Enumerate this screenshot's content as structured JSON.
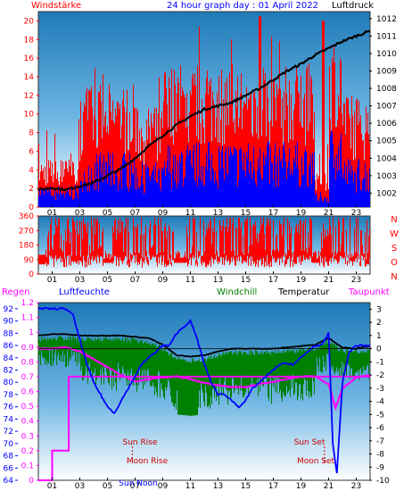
{
  "colors": {
    "wind": "#ff0000",
    "gust_blue": "#0000ff",
    "pressure": "#000000",
    "direction": "#ff0000",
    "rain": "#ff00ff",
    "humidity": "#0000ff",
    "windchill": "#008000",
    "temperature": "#000000",
    "dewpoint": "#ff00ff",
    "plot_top": "#1f7ab8",
    "plot_bottom": "#ffffff"
  },
  "header": {
    "left": "Windstärke",
    "center": "24 hour graph day : 01 April 2022",
    "right": "Luftdruck"
  },
  "compass": [
    "N",
    "W",
    "S",
    "O",
    "N"
  ],
  "lower_header": {
    "rain": "Regen",
    "humidity": "Luftfeuchte",
    "windchill": "Windchill",
    "temperature": "Temperatur",
    "dewpoint": "Taupunkt"
  },
  "annotations": {
    "sun_rise": "Sun Rise",
    "moon_rise": "Moon Rise",
    "sun_set": "Sun Set",
    "moon_set": "Moon Set",
    "sun_noon": "Sun Noon"
  },
  "chart_data": [
    {
      "type": "bar",
      "title": "24 hour graph day : 01 April 2022",
      "x_ticks": [
        "01",
        "03",
        "05",
        "07",
        "09",
        "11",
        "13",
        "15",
        "17",
        "19",
        "21",
        "23"
      ],
      "y_left_ticks": [
        "0",
        "2",
        "4",
        "6",
        "8",
        "10",
        "12",
        "14",
        "16",
        "18",
        "20"
      ],
      "y_left_range": [
        0,
        21
      ],
      "y_right_ticks": [
        "1002",
        "1003",
        "1004",
        "1005",
        "1006",
        "1007",
        "1008",
        "1009",
        "1010",
        "1011",
        "1012"
      ],
      "y_right_range": [
        1001.2,
        1012.4
      ],
      "series": [
        {
          "name": "Windstärke",
          "axis": "left"
        },
        {
          "name": "Luftdruck",
          "axis": "right",
          "x": [
            0,
            1,
            2,
            3,
            4,
            5,
            6,
            7,
            8,
            9,
            10,
            11,
            12,
            13,
            14,
            15,
            16,
            17,
            18,
            19,
            20,
            21,
            22,
            23,
            24
          ],
          "values": [
            1002.2,
            1002.3,
            1002.2,
            1002.4,
            1002.6,
            1003.0,
            1003.4,
            1004.0,
            1004.7,
            1005.3,
            1005.9,
            1006.4,
            1006.8,
            1007.0,
            1007.2,
            1007.6,
            1008.0,
            1008.5,
            1009.0,
            1009.4,
            1009.9,
            1010.3,
            1010.7,
            1011.0,
            1011.3
          ]
        }
      ]
    },
    {
      "type": "bar",
      "x_ticks": [
        "01",
        "03",
        "05",
        "07",
        "09",
        "11",
        "13",
        "15",
        "17",
        "19",
        "21",
        "23"
      ],
      "y_left_ticks": [
        "0",
        "90",
        "180",
        "270",
        "360"
      ],
      "y_left_range": [
        0,
        360
      ],
      "series": [
        {
          "name": "direction"
        }
      ]
    },
    {
      "type": "line",
      "x_ticks": [
        "01",
        "03",
        "05",
        "07",
        "09",
        "11",
        "13",
        "15",
        "17",
        "19",
        "21",
        "23"
      ],
      "y_left1_ticks": [
        "0",
        "0.1",
        "0.2",
        "0.3",
        "0.4",
        "0.5",
        "0.6",
        "0.7",
        "0.8",
        "0.9",
        "1",
        "1.1",
        "1.2"
      ],
      "y_left1_range": [
        0,
        1.2
      ],
      "y_left2_ticks": [
        "64",
        "66",
        "68",
        "70",
        "72",
        "74",
        "76",
        "78",
        "80",
        "82",
        "84",
        "86",
        "88",
        "90",
        "92"
      ],
      "y_left2_range": [
        64,
        93
      ],
      "y_right_ticks": [
        "-10",
        "-9",
        "-8",
        "-7",
        "-6",
        "-5",
        "-4",
        "-3",
        "-2",
        "-1",
        "0",
        "1",
        "2",
        "3"
      ],
      "y_right_range": [
        -10,
        3.5
      ],
      "series": [
        {
          "name": "Regen",
          "axis": "left1",
          "x": [
            0,
            1.0,
            1.0,
            2.2,
            2.2,
            24
          ],
          "values": [
            0,
            0,
            0.2,
            0.2,
            0.7,
            0.7
          ]
        },
        {
          "name": "Luftfeuchte",
          "axis": "left2",
          "x": [
            0,
            0.5,
            1,
            1.5,
            2,
            2.5,
            3,
            3.5,
            4,
            4.5,
            5,
            5.5,
            6,
            6.5,
            7,
            7.5,
            8,
            8.5,
            9,
            9.5,
            10,
            10.5,
            11,
            11.5,
            12,
            12.5,
            13,
            13.5,
            14,
            14.5,
            15,
            15.5,
            16,
            16.5,
            17,
            17.5,
            18,
            18.5,
            19,
            19.5,
            20,
            20.5,
            21,
            21.3,
            21.6,
            22,
            22.5,
            23,
            23.5,
            24
          ],
          "values": [
            92,
            92,
            92,
            92,
            92,
            91,
            87,
            83,
            80,
            78,
            76,
            75,
            77,
            79,
            81,
            83,
            84,
            85,
            86,
            86,
            88,
            89,
            90,
            87,
            83,
            80,
            78,
            78,
            77,
            76,
            77,
            79,
            80,
            81,
            82,
            83,
            83,
            83,
            84,
            85,
            86,
            86,
            88,
            70,
            65,
            80,
            85,
            86,
            86,
            86
          ]
        },
        {
          "name": "Temperatur",
          "axis": "right",
          "x": [
            0,
            1,
            2,
            3,
            4,
            5,
            6,
            7,
            8,
            9,
            10,
            11,
            12,
            13,
            14,
            15,
            16,
            17,
            18,
            19,
            20,
            21,
            22,
            23,
            24
          ],
          "values": [
            1.0,
            1.1,
            1.1,
            1.0,
            1.0,
            1.0,
            1.0,
            0.9,
            0.8,
            0.3,
            -0.5,
            -0.6,
            -0.5,
            -0.2,
            0.0,
            0.0,
            0.0,
            0.0,
            0.1,
            0.2,
            0.3,
            0.8,
            0.1,
            0.0,
            0.2
          ]
        },
        {
          "name": "Windchill",
          "axis": "right"
        },
        {
          "name": "Taupunkt",
          "axis": "right",
          "x": [
            0,
            1,
            2,
            3,
            4,
            5,
            6,
            7,
            8,
            9,
            10,
            11,
            12,
            13,
            14,
            15,
            16,
            17,
            18,
            19,
            20,
            21,
            21.5,
            22,
            23,
            24
          ],
          "values": [
            0.0,
            0.0,
            0.1,
            -0.2,
            -0.8,
            -1.4,
            -2.0,
            -2.5,
            -2.3,
            -2.2,
            -2.1,
            -2.3,
            -2.6,
            -2.8,
            -2.9,
            -2.9,
            -2.7,
            -2.5,
            -2.3,
            -2.1,
            -2.1,
            -2.7,
            -4.5,
            -3.0,
            -2.2,
            -2.0
          ]
        }
      ]
    }
  ]
}
